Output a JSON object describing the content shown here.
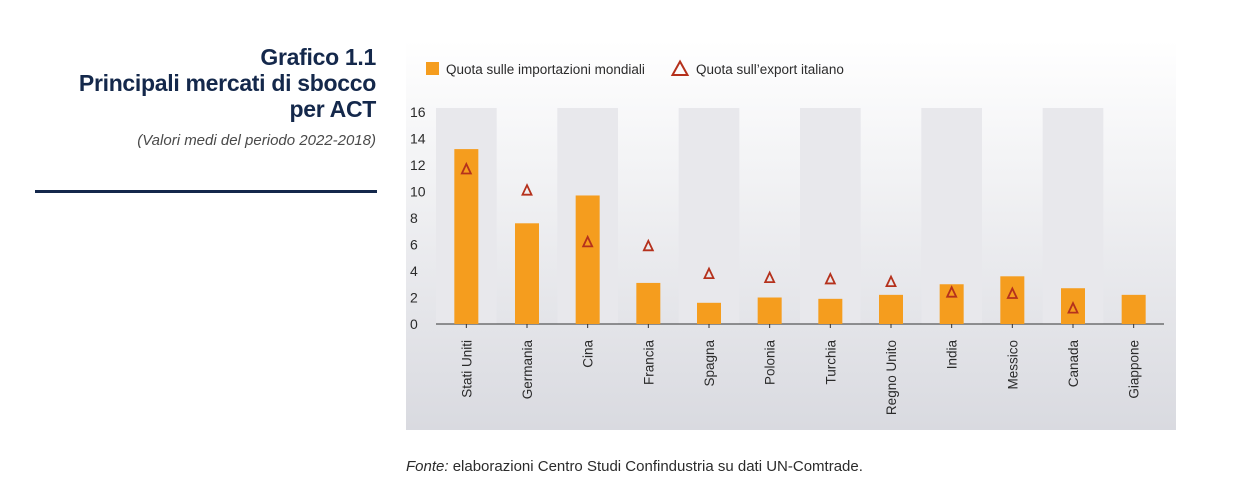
{
  "header": {
    "title_line1": "Grafico 1.1",
    "title_line2": "Principali mercati di sbocco",
    "title_line3": "per ACT",
    "subtitle": "(Valori medi del periodo 2022-2018)"
  },
  "footer": {
    "source_label": "Fonte:",
    "source_text": " elaborazioni Centro Studi Confindustria su dati UN-Comtrade."
  },
  "colors": {
    "bar": "#f59d1e",
    "triangle": "#b5311c",
    "band": "#e8e8ec",
    "panel_top": "#ffffff",
    "panel_bottom": "#d9dae0"
  },
  "chart_data": {
    "type": "bar",
    "categories": [
      "Stati Uniti",
      "Germania",
      "Cina",
      "Francia",
      "Spagna",
      "Polonia",
      "Turchia",
      "Regno Unito",
      "India",
      "Messico",
      "Canada",
      "Giappone"
    ],
    "series": [
      {
        "name": "Quota sulle importazioni mondiali",
        "type": "bar",
        "values": [
          13.2,
          7.6,
          9.7,
          3.1,
          1.6,
          2.0,
          1.9,
          2.2,
          3.0,
          3.6,
          2.7,
          2.2
        ]
      },
      {
        "name": "Quota sull’export italiano",
        "type": "marker-triangle",
        "values": [
          11.7,
          10.1,
          6.2,
          5.9,
          3.8,
          3.5,
          3.4,
          3.2,
          2.4,
          2.3,
          1.2,
          null
        ]
      }
    ],
    "ylim": [
      0,
      16
    ],
    "yticks": [
      0,
      2,
      4,
      6,
      8,
      10,
      12,
      14,
      16
    ],
    "xlabel": "",
    "ylabel": "",
    "grid": false,
    "legend_position": "top-left",
    "alternating_bands": true
  }
}
